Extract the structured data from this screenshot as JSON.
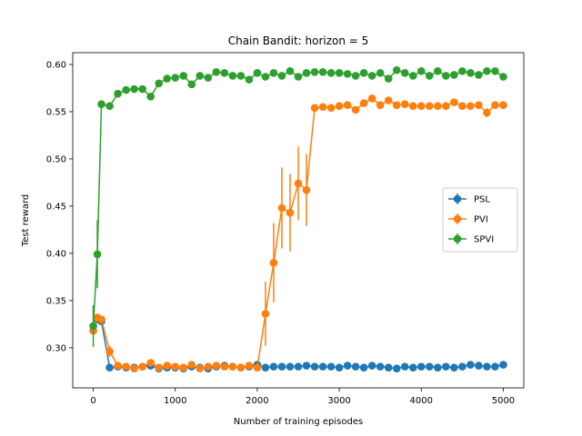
{
  "chart_data": {
    "type": "line",
    "title": "Chain Bandit: horizon = 5",
    "xlabel": "Number of training episodes",
    "ylabel": "Test reward",
    "xlim": [
      -250,
      5250
    ],
    "ylim": [
      0.2575,
      0.6125
    ],
    "xticks": [
      0,
      1000,
      2000,
      3000,
      4000,
      5000
    ],
    "yticks": [
      0.3,
      0.35,
      0.4,
      0.45,
      0.5,
      0.55,
      0.6
    ],
    "grid": false,
    "legend_position": "center-right",
    "x": [
      0,
      50,
      100,
      200,
      300,
      400,
      500,
      600,
      700,
      800,
      900,
      1000,
      1100,
      1200,
      1300,
      1400,
      1500,
      1600,
      1700,
      1800,
      1900,
      2000,
      2100,
      2200,
      2300,
      2400,
      2500,
      2600,
      2700,
      2800,
      2900,
      3000,
      3100,
      3200,
      3300,
      3400,
      3500,
      3600,
      3700,
      3800,
      3900,
      4000,
      4100,
      4200,
      4300,
      4400,
      4500,
      4600,
      4700,
      4800,
      4900,
      5000
    ],
    "series": [
      {
        "name": "PSL",
        "color": "#1f77b4",
        "values": [
          0.318,
          0.33,
          0.328,
          0.279,
          0.28,
          0.279,
          0.279,
          0.28,
          0.281,
          0.278,
          0.279,
          0.279,
          0.278,
          0.28,
          0.279,
          0.278,
          0.28,
          0.281,
          0.28,
          0.279,
          0.28,
          0.282,
          0.279,
          0.28,
          0.28,
          0.28,
          0.28,
          0.281,
          0.28,
          0.28,
          0.28,
          0.279,
          0.281,
          0.28,
          0.279,
          0.281,
          0.28,
          0.279,
          0.278,
          0.28,
          0.279,
          0.28,
          0.28,
          0.279,
          0.28,
          0.279,
          0.28,
          0.282,
          0.281,
          0.28,
          0.28,
          0.282
        ],
        "err": [
          0.004,
          0.004,
          0.004,
          0.002,
          0.002,
          0.002,
          0.002,
          0.002,
          0.002,
          0.002,
          0.002,
          0.002,
          0.002,
          0.002,
          0.002,
          0.002,
          0.002,
          0.002,
          0.002,
          0.002,
          0.002,
          0.002,
          0.002,
          0.002,
          0.002,
          0.002,
          0.002,
          0.002,
          0.002,
          0.002,
          0.002,
          0.002,
          0.002,
          0.002,
          0.002,
          0.002,
          0.002,
          0.002,
          0.002,
          0.002,
          0.002,
          0.002,
          0.002,
          0.002,
          0.002,
          0.002,
          0.002,
          0.002,
          0.002,
          0.002,
          0.002,
          0.002
        ]
      },
      {
        "name": "PVI",
        "color": "#ff7f0e",
        "values": [
          0.318,
          0.332,
          0.33,
          0.296,
          0.281,
          0.28,
          0.278,
          0.28,
          0.284,
          0.279,
          0.281,
          0.28,
          0.279,
          0.282,
          0.278,
          0.28,
          0.281,
          0.28,
          0.28,
          0.279,
          0.281,
          0.279,
          0.336,
          0.39,
          0.448,
          0.443,
          0.474,
          0.467,
          0.554,
          0.555,
          0.554,
          0.556,
          0.557,
          0.552,
          0.559,
          0.564,
          0.557,
          0.562,
          0.557,
          0.558,
          0.556,
          0.556,
          0.556,
          0.556,
          0.556,
          0.56,
          0.556,
          0.556,
          0.557,
          0.549,
          0.557,
          0.557
        ],
        "err": [
          0.004,
          0.004,
          0.004,
          0.006,
          0.003,
          0.002,
          0.002,
          0.002,
          0.003,
          0.002,
          0.002,
          0.002,
          0.002,
          0.002,
          0.002,
          0.002,
          0.002,
          0.002,
          0.002,
          0.002,
          0.002,
          0.002,
          0.034,
          0.042,
          0.043,
          0.041,
          0.039,
          0.038,
          0.004,
          0.004,
          0.004,
          0.004,
          0.004,
          0.004,
          0.004,
          0.004,
          0.004,
          0.004,
          0.004,
          0.004,
          0.004,
          0.004,
          0.004,
          0.004,
          0.004,
          0.004,
          0.004,
          0.004,
          0.004,
          0.005,
          0.004,
          0.004
        ]
      },
      {
        "name": "SPVI",
        "color": "#2ca02c",
        "values": [
          0.323,
          0.399,
          0.558,
          0.556,
          0.569,
          0.573,
          0.574,
          0.574,
          0.566,
          0.58,
          0.585,
          0.586,
          0.588,
          0.579,
          0.588,
          0.586,
          0.592,
          0.591,
          0.588,
          0.588,
          0.584,
          0.591,
          0.587,
          0.591,
          0.588,
          0.593,
          0.587,
          0.591,
          0.592,
          0.592,
          0.591,
          0.591,
          0.59,
          0.588,
          0.591,
          0.588,
          0.591,
          0.585,
          0.594,
          0.591,
          0.588,
          0.593,
          0.588,
          0.593,
          0.588,
          0.589,
          0.593,
          0.591,
          0.589,
          0.593,
          0.593,
          0.587
        ],
        "err": [
          0.022,
          0.036,
          0.004,
          0.004,
          0.003,
          0.003,
          0.003,
          0.003,
          0.003,
          0.003,
          0.003,
          0.003,
          0.003,
          0.003,
          0.003,
          0.003,
          0.003,
          0.003,
          0.003,
          0.003,
          0.003,
          0.003,
          0.003,
          0.003,
          0.003,
          0.003,
          0.003,
          0.003,
          0.003,
          0.003,
          0.003,
          0.003,
          0.003,
          0.003,
          0.003,
          0.003,
          0.003,
          0.003,
          0.003,
          0.003,
          0.003,
          0.003,
          0.003,
          0.003,
          0.003,
          0.003,
          0.003,
          0.003,
          0.003,
          0.003,
          0.003,
          0.003
        ]
      }
    ]
  }
}
